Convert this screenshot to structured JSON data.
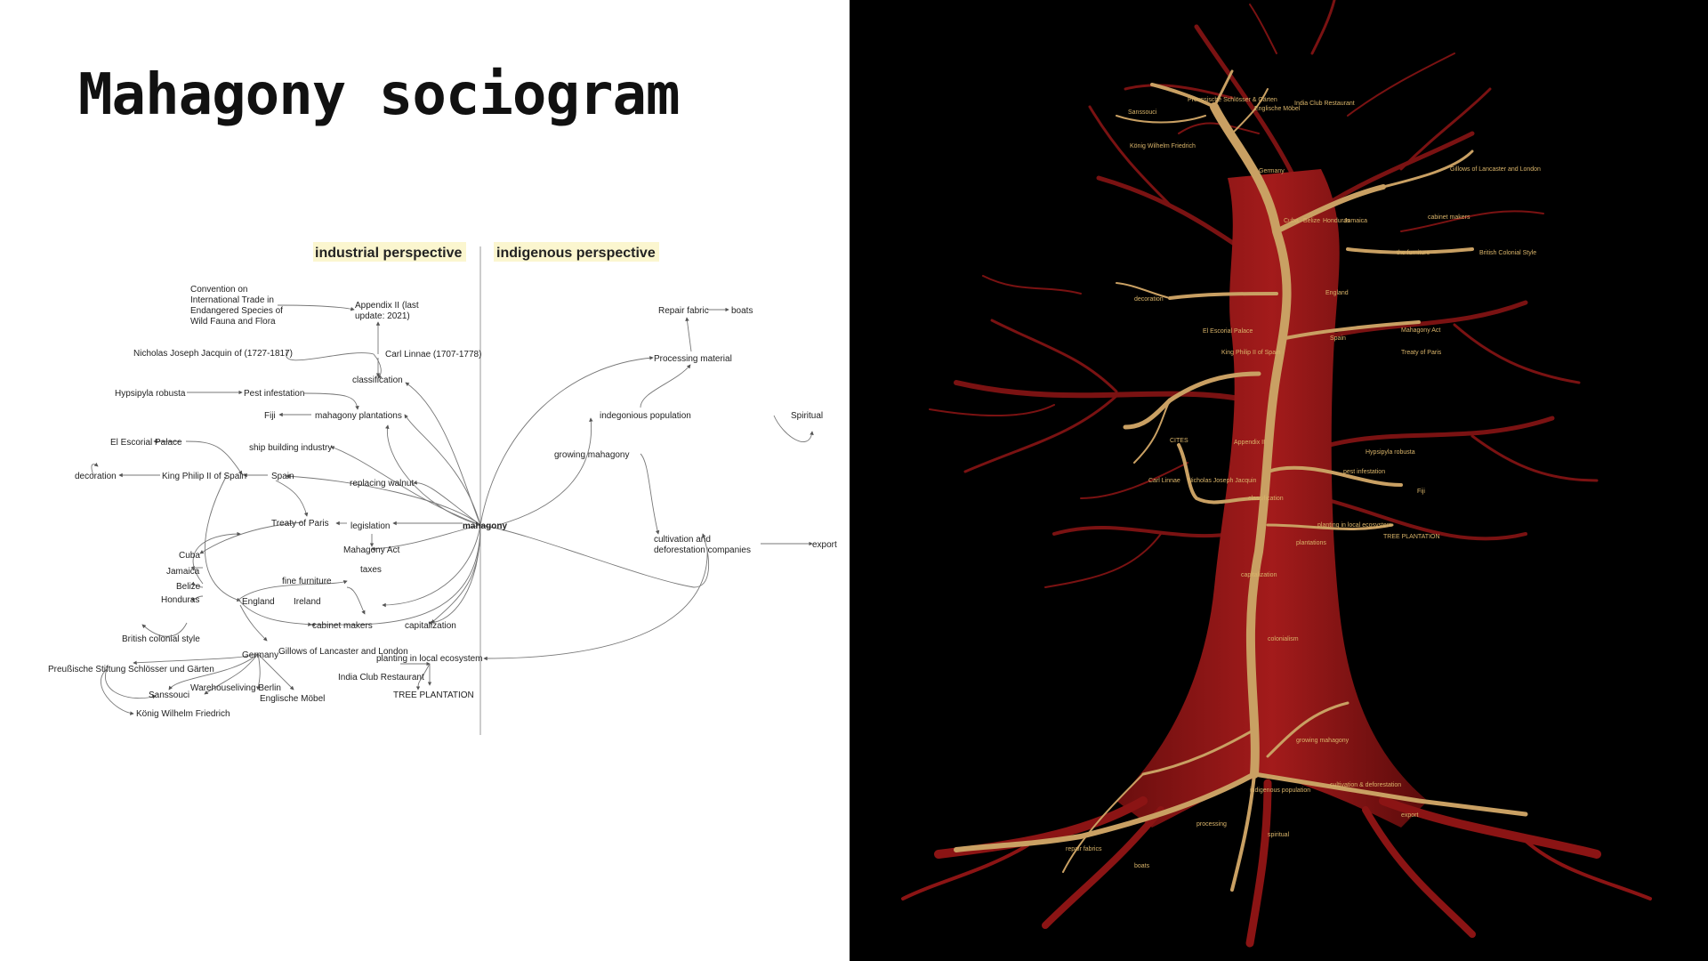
{
  "title": "Mahagony sociogram",
  "sociogram": {
    "headers": {
      "industrial": "industrial perspective",
      "indigenous": "indigenous perspective"
    },
    "hub": "mahagony",
    "nodes": {
      "cites_1": "Convention on",
      "cites_2": "International Trade in",
      "cites_3": "Endangered Species of",
      "cites_4": "Wild Fauna and Flora",
      "appendix_1": "Appendix II (last",
      "appendix_2": "update: 2021)",
      "jacquin": "Nicholas Joseph Jacquin of (1727-1817)",
      "linnae": "Carl Linnae (1707-1778)",
      "classification": "classification",
      "hypsipyla": "Hypsipyla robusta",
      "pest": "Pest infestation",
      "fiji": "Fiji",
      "plantations": "mahagony plantations",
      "escorial": "El Escorial Palace",
      "shipbuilding": "ship building industry",
      "decoration": "decoration",
      "philip": "King Philip II of Spain",
      "spain": "Spain",
      "walnut": "replacing walnut",
      "paris": "Treaty of Paris",
      "legislation": "legislation",
      "act": "Mahagony Act",
      "taxes": "taxes",
      "cuba": "Cuba",
      "jamaica": "Jamaica",
      "belize": "Belize",
      "honduras": "Honduras",
      "england": "England",
      "furniture": "fine furniture",
      "ireland": "Ireland",
      "cabinet": "cabinet makers",
      "capitalization": "capitalization",
      "colonial": "British colonial style",
      "germany": "Germany",
      "gillows": "Gillows of Lancaster and London",
      "planting": "planting in local ecosystem",
      "stiftung": "Preußische Stiftung Schlösser und Gärten",
      "india": "India Club Restaurant",
      "sanssouci": "Sanssouci",
      "warehouse": "Warehouseliving Berlin",
      "englische": "Englische Möbel",
      "tree_plantation": "TREE PLANTATION",
      "koenig": "König Wilhelm Friedrich",
      "repair": "Repair fabric",
      "boats": "boats",
      "processing": "Processing material",
      "indigenous_pop": "indegonious population",
      "spiritual": "Spiritual",
      "growing": "growing mahagony",
      "cultivation_1": "cultivation and",
      "cultivation_2": "deforestation companies",
      "export": "export"
    }
  },
  "tree_labels": {
    "l1": "Preussische Schlösser & Gärten",
    "l2": "Sanssouci",
    "l3": "Englische Möbel",
    "l4": "India Club Restaurant",
    "l5": "König Wilhelm Friedrich",
    "l6": "Germany",
    "l7": "Gillows of Lancaster and London",
    "l8": "cabinet makers",
    "l9": "Cuba",
    "l10": "Belize",
    "l11": "Honduras",
    "l12": "Jamaica",
    "l13": "the furniture",
    "l14": "British Colonial Style",
    "l15": "England",
    "l16": "decoration",
    "l17": "El Escorial Palace",
    "l18": "King Philip II of Spain",
    "l19": "Spain",
    "l20": "Mahagony Act",
    "l21": "Treaty of Paris",
    "l22": "CITES",
    "l23": "Appendix II",
    "l24": "Carl Linnae",
    "l25": "Nicholas Joseph Jacquin",
    "l26": "classification",
    "l27": "pest infestation",
    "l28": "Hypsipyla robusta",
    "l29": "Fiji",
    "l30": "plantations",
    "l31": "planting in local ecosystem",
    "l32": "TREE PLANTATION",
    "l33": "capitalization",
    "l34": "colonialism",
    "l35": "growing mahagony",
    "l36": "indigenous population",
    "l37": "cultivation & deforestation",
    "l38": "export",
    "l39": "processing",
    "l40": "spiritual",
    "l41": "repair fabrics",
    "l42": "boats"
  },
  "colors": {
    "highlight": "#fbf6cf",
    "tree_red": "#8b1414",
    "tree_gold": "#c9a063"
  }
}
